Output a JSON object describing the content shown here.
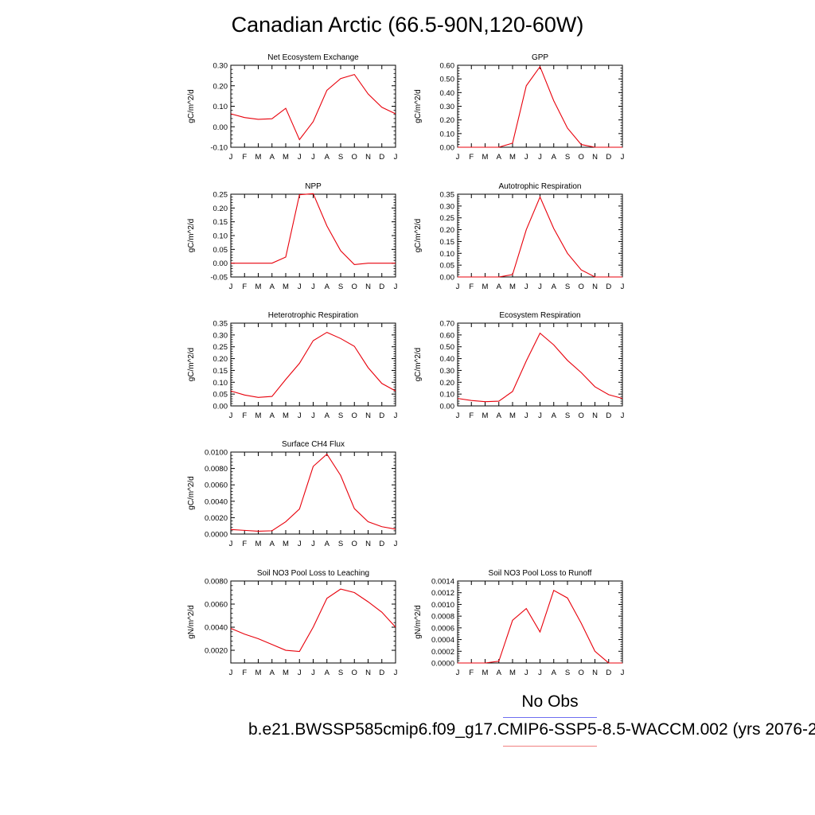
{
  "page": {
    "title": "Canadian Arctic (66.5-90N,120-60W)"
  },
  "legend": {
    "no_obs_label": "No Obs",
    "no_obs_color": "#6f6ff0",
    "case_label": "b.e21.BWSSP585cmip6.f09_g17.CMIP6-SSP5-8.5-WACCM.002 (yrs 2076-2",
    "case_color": "#f08080"
  },
  "chart_data": [
    {
      "type": "line",
      "title": "Net Ecosystem Exchange",
      "ylabel": "gC/m^2/d",
      "categories": [
        "J",
        "F",
        "M",
        "A",
        "M",
        "J",
        "J",
        "A",
        "S",
        "O",
        "N",
        "D",
        "J"
      ],
      "ylim": [
        -0.1,
        0.3
      ],
      "yticks": [
        -0.1,
        0.0,
        0.1,
        0.2,
        0.3
      ],
      "ytick_labels": [
        "-0.10",
        "0.00",
        "0.10",
        "0.20",
        "0.30"
      ],
      "series": [
        {
          "values": [
            0.063,
            0.045,
            0.036,
            0.039,
            0.09,
            -0.063,
            0.025,
            0.178,
            0.235,
            0.255,
            0.16,
            0.095,
            0.063
          ],
          "color": "#e8000b"
        }
      ]
    },
    {
      "type": "line",
      "title": "GPP",
      "ylabel": "gC/m^2/d",
      "categories": [
        "J",
        "F",
        "M",
        "A",
        "M",
        "J",
        "J",
        "A",
        "S",
        "O",
        "N",
        "D",
        "J"
      ],
      "ylim": [
        0.0,
        0.6
      ],
      "yticks": [
        0.0,
        0.1,
        0.2,
        0.3,
        0.4,
        0.5,
        0.6
      ],
      "ytick_labels": [
        "0.00",
        "0.10",
        "0.20",
        "0.30",
        "0.40",
        "0.50",
        "0.60"
      ],
      "series": [
        {
          "values": [
            0.0,
            0.0,
            0.0,
            0.0,
            0.03,
            0.45,
            0.59,
            0.34,
            0.14,
            0.02,
            0.0,
            0.0,
            0.0
          ],
          "color": "#e8000b"
        }
      ]
    },
    {
      "type": "line",
      "title": "NPP",
      "ylabel": "gC/m^2/d",
      "categories": [
        "J",
        "F",
        "M",
        "A",
        "M",
        "J",
        "J",
        "A",
        "S",
        "O",
        "N",
        "D",
        "J"
      ],
      "ylim": [
        -0.05,
        0.25
      ],
      "yticks": [
        -0.05,
        0.0,
        0.05,
        0.1,
        0.15,
        0.2,
        0.25
      ],
      "ytick_labels": [
        "-0.05",
        "0.00",
        "0.05",
        "0.10",
        "0.15",
        "0.20",
        "0.25"
      ],
      "series": [
        {
          "values": [
            0.0,
            0.0,
            0.0,
            0.0,
            0.022,
            0.248,
            0.252,
            0.135,
            0.045,
            -0.005,
            0.0,
            0.0,
            0.0
          ],
          "color": "#e8000b"
        }
      ]
    },
    {
      "type": "line",
      "title": "Autotrophic Respiration",
      "ylabel": "gC/m^2/d",
      "categories": [
        "J",
        "F",
        "M",
        "A",
        "M",
        "J",
        "J",
        "A",
        "S",
        "O",
        "N",
        "D",
        "J"
      ],
      "ylim": [
        0.0,
        0.35
      ],
      "yticks": [
        0.0,
        0.05,
        0.1,
        0.15,
        0.2,
        0.25,
        0.3,
        0.35
      ],
      "ytick_labels": [
        "0.00",
        "0.05",
        "0.10",
        "0.15",
        "0.20",
        "0.25",
        "0.30",
        "0.35"
      ],
      "series": [
        {
          "values": [
            0.0,
            0.0,
            0.0,
            0.0,
            0.01,
            0.2,
            0.338,
            0.205,
            0.1,
            0.03,
            0.0,
            0.0,
            0.0
          ],
          "color": "#e8000b"
        }
      ]
    },
    {
      "type": "line",
      "title": "Heterotrophic Respiration",
      "ylabel": "gC/m^2/d",
      "categories": [
        "J",
        "F",
        "M",
        "A",
        "M",
        "J",
        "J",
        "A",
        "S",
        "O",
        "N",
        "D",
        "J"
      ],
      "ylim": [
        0.0,
        0.35
      ],
      "yticks": [
        0.0,
        0.05,
        0.1,
        0.15,
        0.2,
        0.25,
        0.3,
        0.35
      ],
      "ytick_labels": [
        "0.00",
        "0.05",
        "0.10",
        "0.15",
        "0.20",
        "0.25",
        "0.30",
        "0.35"
      ],
      "series": [
        {
          "values": [
            0.063,
            0.046,
            0.036,
            0.04,
            0.112,
            0.18,
            0.276,
            0.311,
            0.285,
            0.252,
            0.162,
            0.095,
            0.063
          ],
          "color": "#e8000b"
        }
      ]
    },
    {
      "type": "line",
      "title": "Ecosystem Respiration",
      "ylabel": "gC/m^2/d",
      "categories": [
        "J",
        "F",
        "M",
        "A",
        "M",
        "J",
        "J",
        "A",
        "S",
        "O",
        "N",
        "D",
        "J"
      ],
      "ylim": [
        0.0,
        0.7
      ],
      "yticks": [
        0.0,
        0.1,
        0.2,
        0.3,
        0.4,
        0.5,
        0.6,
        0.7
      ],
      "ytick_labels": [
        "0.00",
        "0.10",
        "0.20",
        "0.30",
        "0.40",
        "0.50",
        "0.60",
        "0.70"
      ],
      "series": [
        {
          "values": [
            0.063,
            0.046,
            0.036,
            0.04,
            0.122,
            0.38,
            0.615,
            0.516,
            0.385,
            0.282,
            0.162,
            0.095,
            0.063
          ],
          "color": "#e8000b"
        }
      ]
    },
    {
      "type": "line",
      "title": "Surface CH4 Flux",
      "ylabel": "gC/m^2/d",
      "categories": [
        "J",
        "F",
        "M",
        "A",
        "M",
        "J",
        "J",
        "A",
        "S",
        "O",
        "N",
        "D",
        "J"
      ],
      "ylim": [
        0.0,
        0.01
      ],
      "yticks": [
        0.0,
        0.002,
        0.004,
        0.006,
        0.008,
        0.01
      ],
      "ytick_labels": [
        "0.0000",
        "0.0020",
        "0.0040",
        "0.0060",
        "0.0080",
        "0.0100"
      ],
      "series": [
        {
          "values": [
            0.00055,
            0.00045,
            0.00035,
            0.0004,
            0.0015,
            0.00305,
            0.00825,
            0.00975,
            0.00715,
            0.0031,
            0.0015,
            0.0009,
            0.0006
          ],
          "color": "#e8000b"
        }
      ]
    },
    {
      "type": "line",
      "title": "Soil NO3 Pool Loss to Leaching",
      "ylabel": "gN/m^2/d",
      "categories": [
        "J",
        "F",
        "M",
        "A",
        "M",
        "J",
        "J",
        "A",
        "S",
        "O",
        "N",
        "D",
        "J"
      ],
      "ylim": [
        0.0009,
        0.008
      ],
      "yticks": [
        0.002,
        0.004,
        0.006,
        0.008
      ],
      "ytick_labels": [
        "0.0020",
        "0.0040",
        "0.0060",
        "0.0080"
      ],
      "series": [
        {
          "values": [
            0.0039,
            0.0034,
            0.003,
            0.0025,
            0.002,
            0.0019,
            0.004,
            0.0065,
            0.0073,
            0.007,
            0.0062,
            0.0053,
            0.004
          ],
          "color": "#e8000b"
        }
      ]
    },
    {
      "type": "line",
      "title": "Soil NO3 Pool Loss to Runoff",
      "ylabel": "gN/m^2/d",
      "categories": [
        "J",
        "F",
        "M",
        "A",
        "M",
        "J",
        "J",
        "A",
        "S",
        "O",
        "N",
        "D",
        "J"
      ],
      "ylim": [
        0.0,
        0.0014
      ],
      "yticks": [
        0.0,
        0.0002,
        0.0004,
        0.0006,
        0.0008,
        0.001,
        0.0012,
        0.0014
      ],
      "ytick_labels": [
        "0.0000",
        "0.0002",
        "0.0004",
        "0.0006",
        "0.0008",
        "0.0010",
        "0.0012",
        "0.0014"
      ],
      "series": [
        {
          "values": [
            0.0,
            0.0,
            0.0,
            3e-05,
            0.00073,
            0.00093,
            0.00053,
            0.00124,
            0.00111,
            0.00068,
            0.0002,
            0.0,
            0.0
          ],
          "color": "#e8000b"
        }
      ]
    }
  ]
}
